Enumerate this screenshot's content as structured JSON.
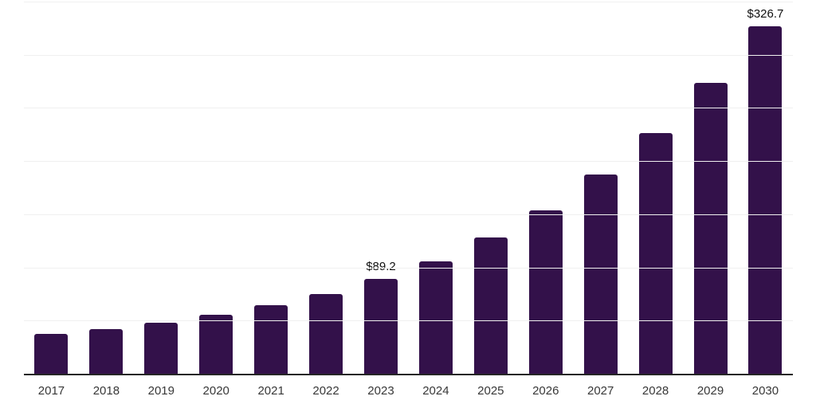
{
  "chart_data": {
    "type": "bar",
    "title": "",
    "xlabel": "",
    "ylabel": "",
    "categories": [
      "2017",
      "2018",
      "2019",
      "2020",
      "2021",
      "2022",
      "2023",
      "2024",
      "2025",
      "2026",
      "2027",
      "2028",
      "2029",
      "2030"
    ],
    "values": [
      37.5,
      42.3,
      48.3,
      55.2,
      64.1,
      74.6,
      89.2,
      106.0,
      128.2,
      154.0,
      187.7,
      226.7,
      273.9,
      326.7
    ],
    "ylim": [
      0,
      350
    ],
    "gridline_step": 50,
    "gridline_values": [
      50,
      100,
      150,
      200,
      250,
      300,
      350
    ],
    "grid": true,
    "legend": false,
    "data_labels": [
      {
        "category": "2023",
        "label": "$89.2"
      },
      {
        "category": "2030",
        "label": "$326.7"
      }
    ],
    "colors": {
      "bar": "#33114a",
      "axis": "#262626",
      "gridline": "#f0f0f0",
      "tick_label": "#383838",
      "data_label": "#111111",
      "background": "#ffffff"
    }
  }
}
